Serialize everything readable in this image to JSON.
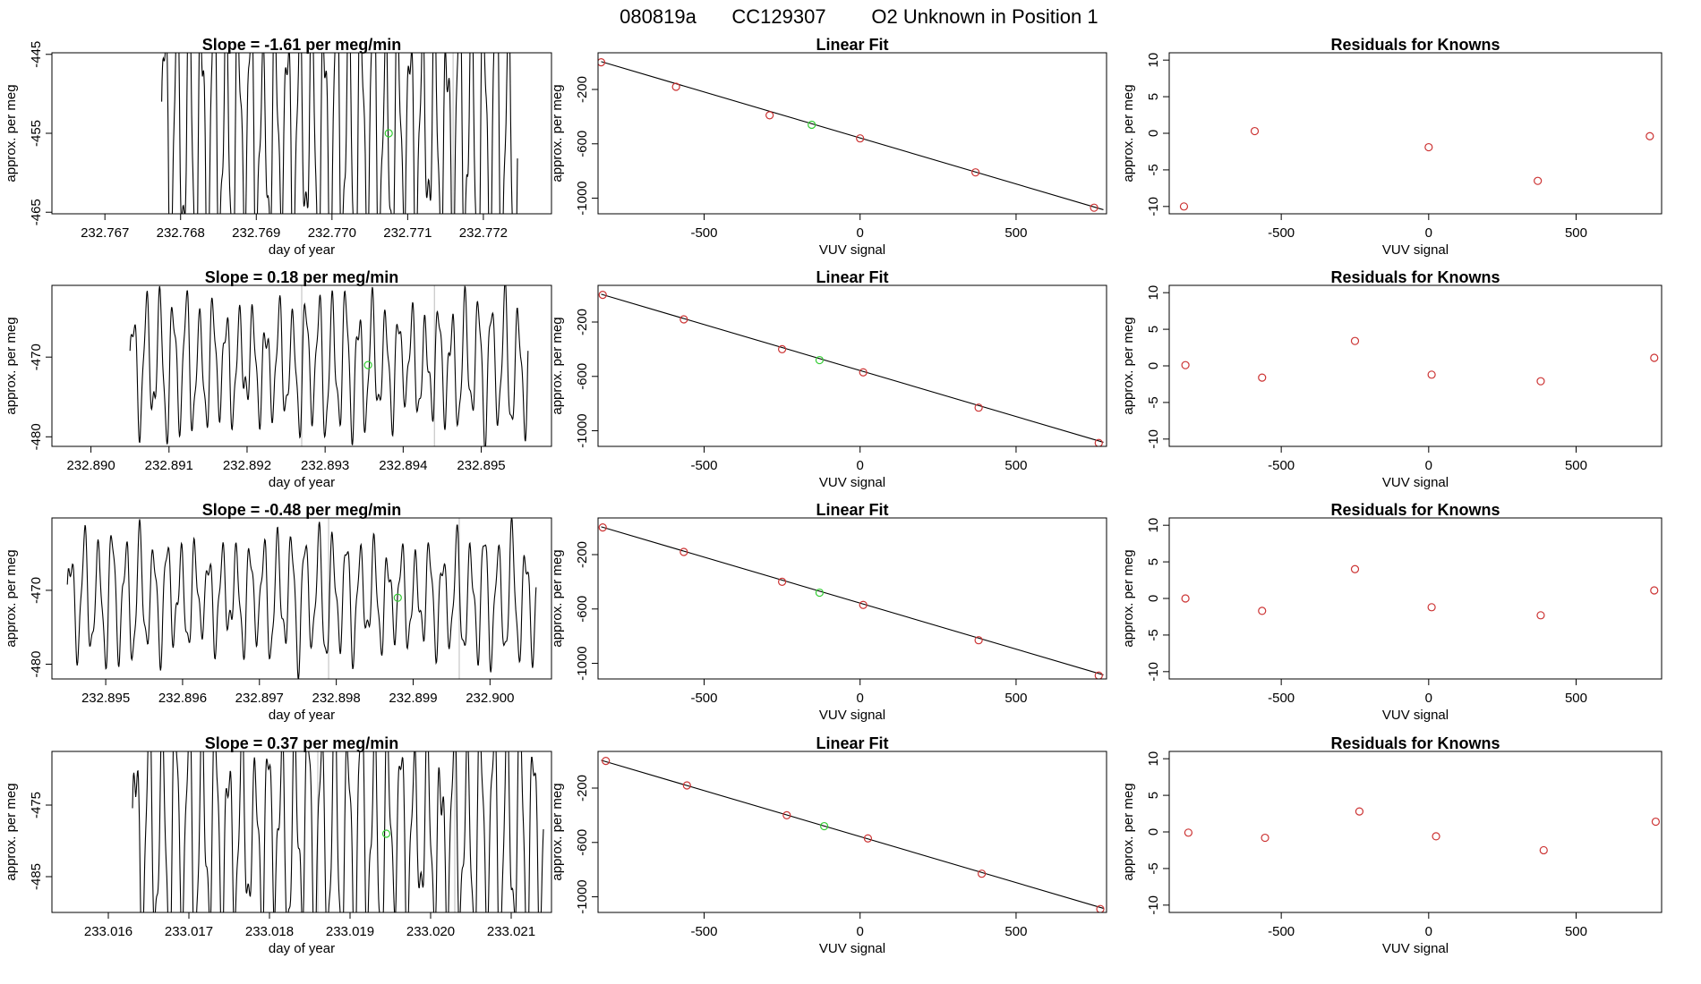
{
  "header": {
    "run_id": "080819a",
    "tank_id": "CC129307",
    "label": "O2 Unknown in Position  1"
  },
  "colors": {
    "trace": "#000000",
    "known": "#cc3333",
    "unknown": "#33cc33",
    "divider": "#bbbbbb"
  },
  "chart_data": [
    {
      "type": "line",
      "row": 1,
      "col": 1,
      "title": "Slope =  -1.61  per meg/min",
      "xlabel": "day of year",
      "ylabel": "approx. per meg",
      "xlim": [
        232.7663,
        232.7729
      ],
      "ylim": [
        -465.2,
        -444.8
      ],
      "xticks": [
        232.767,
        232.768,
        232.769,
        232.77,
        232.771,
        232.772
      ],
      "xtick_labels": [
        "232.767",
        "232.768",
        "232.769",
        "232.770",
        "232.771",
        "232.772"
      ],
      "yticks": [
        -465,
        -455,
        -445
      ],
      "ytick_labels": [
        "-465",
        "-455",
        "-445"
      ],
      "trace_start": 232.76775,
      "trace_end": 232.77245,
      "center": -455,
      "amplitude": 18,
      "cycles": 29,
      "dividers": [
        232.7716
      ],
      "unknown_point": {
        "x": 232.77075,
        "y": -455
      }
    },
    {
      "type": "scatter",
      "row": 1,
      "col": 2,
      "title": "Linear Fit",
      "xlabel": "VUV signal",
      "ylabel": "approx. per meg",
      "xlim": [
        -840,
        790
      ],
      "ylim": [
        -1115,
        70
      ],
      "xticks": [
        -500,
        0,
        500
      ],
      "xtick_labels": [
        "-500",
        "0",
        "500"
      ],
      "yticks": [
        -1000,
        -600,
        -200
      ],
      "ytick_labels": [
        "-1000",
        "-600",
        "-200"
      ],
      "fit_line": [
        [
          -830,
          5
        ],
        [
          780,
          -1085
        ]
      ],
      "knowns": [
        [
          -830,
          0
        ],
        [
          -590,
          -180
        ],
        [
          -290,
          -390
        ],
        [
          0,
          -560
        ],
        [
          370,
          -810
        ],
        [
          750,
          -1070
        ]
      ],
      "unknown": [
        -155,
        -460
      ]
    },
    {
      "type": "scatter",
      "row": 1,
      "col": 3,
      "title": "Residuals for Knowns",
      "xlabel": "VUV signal",
      "ylabel": "approx. per meg",
      "xlim": [
        -880,
        790
      ],
      "ylim": [
        -11,
        11
      ],
      "xticks": [
        -500,
        0,
        500
      ],
      "xtick_labels": [
        "-500",
        "0",
        "500"
      ],
      "yticks": [
        -10,
        -5,
        0,
        5,
        10
      ],
      "ytick_labels": [
        "-10",
        "-5",
        "0",
        "5",
        "10"
      ],
      "points": [
        [
          -830,
          -10.0
        ],
        [
          -590,
          0.3
        ],
        [
          0,
          -1.9
        ],
        [
          370,
          -6.5
        ],
        [
          750,
          -0.4
        ]
      ]
    },
    {
      "type": "line",
      "row": 2,
      "col": 1,
      "title": "Slope =  0.18  per meg/min",
      "xlabel": "day of year",
      "ylabel": "approx. per meg",
      "xlim": [
        232.8895,
        232.8959
      ],
      "ylim": [
        -481.2,
        -461.0
      ],
      "xticks": [
        232.89,
        232.891,
        232.892,
        232.893,
        232.894,
        232.895
      ],
      "xtick_labels": [
        "232.890",
        "232.891",
        "232.892",
        "232.893",
        "232.894",
        "232.895"
      ],
      "yticks": [
        -480,
        -470
      ],
      "ytick_labels": [
        "-480",
        "-470"
      ],
      "trace_start": 232.8905,
      "trace_end": 232.8956,
      "center": -471,
      "amplitude": 8,
      "cycles": 30,
      "dividers": [
        232.8927,
        232.8944
      ],
      "unknown_point": {
        "x": 232.89355,
        "y": -471
      }
    },
    {
      "type": "scatter",
      "row": 2,
      "col": 2,
      "title": "Linear Fit",
      "xlabel": "VUV signal",
      "ylabel": "approx. per meg",
      "xlim": [
        -840,
        790
      ],
      "ylim": [
        -1115,
        70
      ],
      "xticks": [
        -500,
        0,
        500
      ],
      "xtick_labels": [
        "-500",
        "0",
        "500"
      ],
      "yticks": [
        -1000,
        -600,
        -200
      ],
      "ytick_labels": [
        "-1000",
        "-600",
        "-200"
      ],
      "fit_line": [
        [
          -830,
          5
        ],
        [
          780,
          -1085
        ]
      ],
      "knowns": [
        [
          -825,
          0
        ],
        [
          -565,
          -180
        ],
        [
          -250,
          -400
        ],
        [
          10,
          -570
        ],
        [
          380,
          -830
        ],
        [
          765,
          -1090
        ]
      ],
      "unknown": [
        -130,
        -480
      ]
    },
    {
      "type": "scatter",
      "row": 2,
      "col": 3,
      "title": "Residuals for Knowns",
      "xlabel": "VUV signal",
      "ylabel": "approx. per meg",
      "xlim": [
        -880,
        790
      ],
      "ylim": [
        -11,
        11
      ],
      "xticks": [
        -500,
        0,
        500
      ],
      "xtick_labels": [
        "-500",
        "0",
        "500"
      ],
      "yticks": [
        -10,
        -5,
        0,
        5,
        10
      ],
      "ytick_labels": [
        "-10",
        "-5",
        "0",
        "5",
        "10"
      ],
      "points": [
        [
          -825,
          0.1
        ],
        [
          -565,
          -1.6
        ],
        [
          -250,
          3.4
        ],
        [
          10,
          -1.2
        ],
        [
          380,
          -2.1
        ],
        [
          765,
          1.1
        ]
      ]
    },
    {
      "type": "line",
      "row": 3,
      "col": 1,
      "title": "Slope =  -0.48  per meg/min",
      "xlabel": "day of year",
      "ylabel": "approx. per meg",
      "xlim": [
        232.8943,
        232.9008
      ],
      "ylim": [
        -482.0,
        -460.2
      ],
      "xticks": [
        232.895,
        232.896,
        232.897,
        232.898,
        232.899,
        232.9
      ],
      "xtick_labels": [
        "232.895",
        "232.896",
        "232.897",
        "232.898",
        "232.899",
        "232.900"
      ],
      "yticks": [
        -480,
        -470
      ],
      "ytick_labels": [
        "-480",
        "-470"
      ],
      "trace_start": 232.8945,
      "trace_end": 232.9006,
      "center": -471,
      "amplitude": 8,
      "cycles": 34,
      "dividers": [
        232.8979,
        232.8996
      ],
      "unknown_point": {
        "x": 232.8988,
        "y": -471
      }
    },
    {
      "type": "scatter",
      "row": 3,
      "col": 2,
      "title": "Linear Fit",
      "xlabel": "VUV signal",
      "ylabel": "approx. per meg",
      "xlim": [
        -840,
        790
      ],
      "ylim": [
        -1115,
        70
      ],
      "xticks": [
        -500,
        0,
        500
      ],
      "xtick_labels": [
        "-500",
        "0",
        "500"
      ],
      "yticks": [
        -1000,
        -600,
        -200
      ],
      "ytick_labels": [
        "-1000",
        "-600",
        "-200"
      ],
      "fit_line": [
        [
          -830,
          5
        ],
        [
          780,
          -1085
        ]
      ],
      "knowns": [
        [
          -825,
          0
        ],
        [
          -565,
          -180
        ],
        [
          -250,
          -400
        ],
        [
          10,
          -570
        ],
        [
          380,
          -830
        ],
        [
          765,
          -1090
        ]
      ],
      "unknown": [
        -130,
        -480
      ]
    },
    {
      "type": "scatter",
      "row": 3,
      "col": 3,
      "title": "Residuals for Knowns",
      "xlabel": "VUV signal",
      "ylabel": "approx. per meg",
      "xlim": [
        -880,
        790
      ],
      "ylim": [
        -11,
        11
      ],
      "xticks": [
        -500,
        0,
        500
      ],
      "xtick_labels": [
        "-500",
        "0",
        "500"
      ],
      "yticks": [
        -10,
        -5,
        0,
        5,
        10
      ],
      "ytick_labels": [
        "-10",
        "-5",
        "0",
        "5",
        "10"
      ],
      "points": [
        [
          -825,
          0.0
        ],
        [
          -565,
          -1.7
        ],
        [
          -250,
          4.0
        ],
        [
          10,
          -1.2
        ],
        [
          380,
          -2.3
        ],
        [
          765,
          1.1
        ]
      ]
    },
    {
      "type": "line",
      "row": 4,
      "col": 1,
      "title": "Slope =  0.37  per meg/min",
      "xlabel": "day of year",
      "ylabel": "approx. per meg",
      "xlim": [
        233.0153,
        233.0215
      ],
      "ylim": [
        -490.0,
        -467.5
      ],
      "xticks": [
        233.016,
        233.017,
        233.018,
        233.019,
        233.02,
        233.021
      ],
      "xtick_labels": [
        "233.016",
        "233.017",
        "233.018",
        "233.019",
        "233.020",
        "233.021"
      ],
      "yticks": [
        -485,
        -475
      ],
      "ytick_labels": [
        "-485",
        "-475"
      ],
      "trace_start": 233.0163,
      "trace_end": 233.0214,
      "center": -479,
      "amplitude": 16,
      "cycles": 31,
      "dividers": [
        233.0186,
        233.0203
      ],
      "unknown_point": {
        "x": 233.01945,
        "y": -479
      }
    },
    {
      "type": "scatter",
      "row": 4,
      "col": 2,
      "title": "Linear Fit",
      "xlabel": "VUV signal",
      "ylabel": "approx. per meg",
      "xlim": [
        -840,
        790
      ],
      "ylim": [
        -1115,
        70
      ],
      "xticks": [
        -500,
        0,
        500
      ],
      "xtick_labels": [
        "-500",
        "0",
        "500"
      ],
      "yticks": [
        -1000,
        -600,
        -200
      ],
      "ytick_labels": [
        "-1000",
        "-600",
        "-200"
      ],
      "fit_line": [
        [
          -830,
          5
        ],
        [
          780,
          -1085
        ]
      ],
      "knowns": [
        [
          -815,
          0
        ],
        [
          -555,
          -180
        ],
        [
          -235,
          -400
        ],
        [
          25,
          -570
        ],
        [
          390,
          -830
        ],
        [
          770,
          -1090
        ]
      ],
      "unknown": [
        -115,
        -480
      ]
    },
    {
      "type": "scatter",
      "row": 4,
      "col": 3,
      "title": "Residuals for Knowns",
      "xlabel": "VUV signal",
      "ylabel": "approx. per meg",
      "xlim": [
        -880,
        790
      ],
      "ylim": [
        -11,
        11
      ],
      "xticks": [
        -500,
        0,
        500
      ],
      "xtick_labels": [
        "-500",
        "0",
        "500"
      ],
      "yticks": [
        -10,
        -5,
        0,
        5,
        10
      ],
      "ytick_labels": [
        "-10",
        "-5",
        "0",
        "5",
        "10"
      ],
      "points": [
        [
          -815,
          -0.1
        ],
        [
          -555,
          -0.8
        ],
        [
          -235,
          2.8
        ],
        [
          25,
          -0.6
        ],
        [
          390,
          -2.5
        ],
        [
          770,
          1.4
        ]
      ]
    }
  ]
}
